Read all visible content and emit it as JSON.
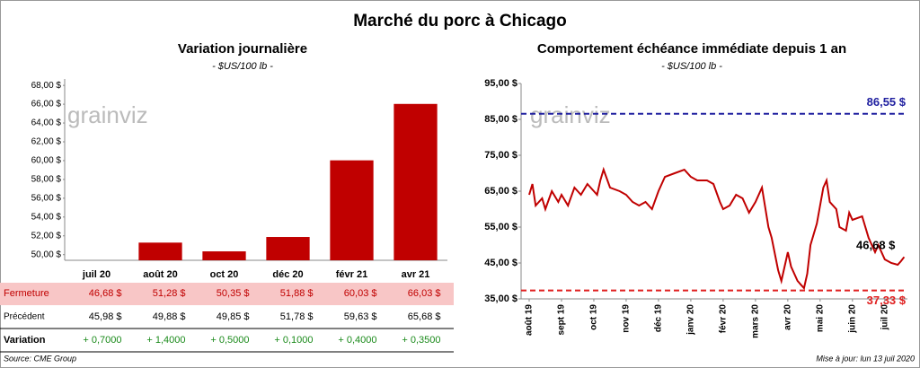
{
  "title": "Marché du porc à Chicago",
  "source": "Source: CME Group",
  "updated": "Mise à jour: lun 13 juil 2020",
  "watermark": "grainviz",
  "chart_data": [
    {
      "type": "bar",
      "title": "Variation journalière",
      "subtitle": "- $US/100 lb -",
      "categories": [
        "juil 20",
        "août 20",
        "oct 20",
        "déc 20",
        "févr 21",
        "avr 21"
      ],
      "values": [
        46.68,
        51.28,
        50.35,
        51.88,
        60.03,
        66.03
      ],
      "value_labels": [
        "46,68 $",
        "51,28 $",
        "50,35 $",
        "51,88 $",
        "60,03 $",
        "66,03 $"
      ],
      "color": "#c00000",
      "ylim": [
        49.4,
        68.3
      ],
      "yticks": [
        {
          "value": 50,
          "label": "50,00 $"
        },
        {
          "value": 52,
          "label": "52,00 $"
        },
        {
          "value": 54,
          "label": "54,00 $"
        },
        {
          "value": 56,
          "label": "56,00 $"
        },
        {
          "value": 58,
          "label": "58,00 $"
        },
        {
          "value": 60,
          "label": "60,00 $"
        },
        {
          "value": 62,
          "label": "62,00 $"
        },
        {
          "value": 64,
          "label": "64,00 $"
        },
        {
          "value": 66,
          "label": "66,00 $"
        },
        {
          "value": 68,
          "label": "68,00 $"
        }
      ]
    },
    {
      "type": "line",
      "title": "Comportement échéance immédiate depuis 1 an",
      "subtitle": "- $US/100 lb -",
      "x": [
        0,
        0.1,
        0.2,
        0.4,
        0.5,
        0.7,
        0.9,
        1.0,
        1.2,
        1.4,
        1.6,
        1.8,
        2.0,
        2.1,
        2.2,
        2.3,
        2.5,
        2.8,
        3.0,
        3.2,
        3.4,
        3.6,
        3.8,
        4.0,
        4.2,
        4.5,
        4.8,
        5.0,
        5.2,
        5.5,
        5.7,
        5.9,
        6.0,
        6.2,
        6.4,
        6.6,
        6.8,
        7.0,
        7.2,
        7.4,
        7.5,
        7.7,
        7.8,
        8.0,
        8.1,
        8.3,
        8.5,
        8.6,
        8.7,
        8.9,
        9.1,
        9.2,
        9.3,
        9.5,
        9.6,
        9.8,
        9.9,
        10.0,
        10.3,
        10.5,
        10.7,
        10.8,
        11.0,
        11.2,
        11.4,
        11.5,
        11.6
      ],
      "series": [
        {
          "name": "Échéance immédiate",
          "color": "#c00000",
          "values": [
            64,
            67,
            61,
            63,
            60,
            65,
            62,
            64,
            61,
            66,
            64,
            67,
            65,
            64,
            68,
            71,
            66,
            65,
            64,
            62,
            61,
            62,
            60,
            65,
            69,
            70,
            71,
            69,
            68,
            68,
            67,
            62,
            60,
            61,
            64,
            63,
            59,
            62,
            66,
            55,
            52,
            43,
            40,
            48,
            44,
            40,
            38,
            42,
            50,
            56,
            66,
            68,
            62,
            60,
            55,
            54,
            59,
            57,
            58,
            52,
            48,
            50,
            46,
            45,
            44.5,
            45.5,
            46.68
          ]
        }
      ],
      "annotations": [
        {
          "text": "46,68 $"
        }
      ],
      "hlines": [
        {
          "value": 86.55,
          "label": "86,55 $",
          "color": "#2020a0"
        },
        {
          "value": 37.33,
          "label": "37,33 $",
          "color": "#e02020"
        }
      ],
      "xlim": [
        -0.25,
        11.7
      ],
      "xticks": [
        {
          "value": 0,
          "label": "août 19"
        },
        {
          "value": 1,
          "label": "sept 19"
        },
        {
          "value": 2,
          "label": "oct 19"
        },
        {
          "value": 3,
          "label": "nov 19"
        },
        {
          "value": 4,
          "label": "déc 19"
        },
        {
          "value": 5,
          "label": "janv 20"
        },
        {
          "value": 6,
          "label": "févr 20"
        },
        {
          "value": 7,
          "label": "mars 20"
        },
        {
          "value": 8,
          "label": "avr 20"
        },
        {
          "value": 9,
          "label": "mai 20"
        },
        {
          "value": 10,
          "label": "juin 20"
        },
        {
          "value": 11,
          "label": "juil 20"
        }
      ],
      "ylim": [
        35,
        95
      ],
      "yticks": [
        {
          "value": 35,
          "label": "35,00 $"
        },
        {
          "value": 45,
          "label": "45,00 $"
        },
        {
          "value": 55,
          "label": "55,00 $"
        },
        {
          "value": 65,
          "label": "65,00 $"
        },
        {
          "value": 75,
          "label": "75,00 $"
        },
        {
          "value": 85,
          "label": "85,00 $"
        },
        {
          "value": 95,
          "label": "95,00 $"
        }
      ]
    }
  ],
  "table": {
    "first_label": "Fermeture",
    "rows": [
      [
        "Précédent",
        "45,98 $",
        "49,88 $",
        "49,85 $",
        "51,78 $",
        "59,63 $",
        "65,68 $"
      ],
      [
        "Variation",
        "+ 0,7000",
        "+ 1,4000",
        "+ 0,5000",
        "+ 0,1000",
        "+ 0,4000",
        "+ 0,3500"
      ]
    ]
  }
}
